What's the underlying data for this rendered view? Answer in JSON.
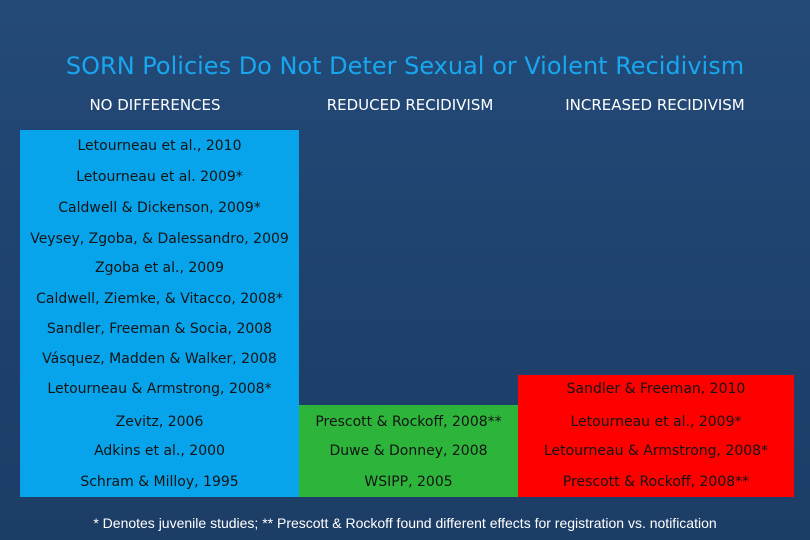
{
  "slide": {
    "title": "SORN Policies Do Not Deter Sexual or Violent Recidivism",
    "footnote": "* Denotes juvenile studies; ** Prescott & Rockoff found different effects for registration vs. notification"
  },
  "columns": {
    "no_differences": {
      "heading": "NO DIFFERENCES",
      "color": "#07a4ec",
      "entries": [
        "Letourneau et al., 2010",
        "Letourneau et al. 2009*",
        "Caldwell & Dickenson, 2009*",
        "Veysey, Zgoba, & Dalessandro, 2009",
        "Zgoba et al., 2009",
        "Caldwell, Ziemke, & Vitacco, 2008*",
        "Sandler, Freeman & Socia, 2008",
        "Vásquez, Madden & Walker, 2008",
        "Letourneau & Armstrong, 2008*",
        "Zevitz, 2006",
        "Adkins et al., 2000",
        "Schram & Milloy, 1995"
      ]
    },
    "reduced_recidivism": {
      "heading": "REDUCED RECIDIVISM",
      "color": "#2db43a",
      "entries": [
        "Prescott & Rockoff, 2008**",
        "Duwe & Donney, 2008",
        "WSIPP, 2005"
      ]
    },
    "increased_recidivism": {
      "heading": "INCREASED RECIDIVISM",
      "color": "#ff0000",
      "entries": [
        "Sandler & Freeman, 2010",
        "Letourneau et al., 2009*",
        "Letourneau & Armstrong, 2008*",
        "Prescott & Rockoff, 2008**"
      ]
    }
  }
}
